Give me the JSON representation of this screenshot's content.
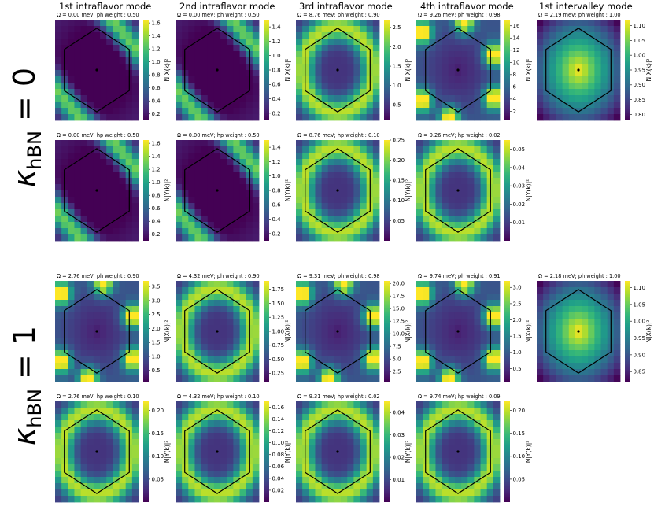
{
  "colorscale": [
    "#440154",
    "#482878",
    "#3e4989",
    "#31688e",
    "#26828e",
    "#1f9e89",
    "#35b779",
    "#6ece58",
    "#b5de2b",
    "#fde725"
  ],
  "chart_data": {
    "type": "heatmap",
    "column_titles": [
      "1st intraflavor mode",
      "2nd intraflavor mode",
      "3rd intraflavor mode",
      "4th intraflavor mode",
      "1st intervalley mode"
    ],
    "row_groups": [
      {
        "label_main": "κ",
        "label_sub": "hBN",
        "label_eq": " = 0"
      },
      {
        "label_main": "κ",
        "label_sub": "hBN",
        "label_eq": " = 1"
      }
    ],
    "panels": [
      {
        "title": "Ω = 0.00 meV;  ph weight : 0.50",
        "cbar_label": "N|X(k)|²",
        "ticks": [
          "0.2",
          "0.4",
          "0.6",
          "0.8",
          "1.0",
          "1.2",
          "1.4",
          "1.6"
        ],
        "range": [
          0.1,
          1.65
        ],
        "pattern": "diag",
        "group": 0,
        "col": 0,
        "sub": 0
      },
      {
        "title": "Ω = 0.00 meV;  ph weight : 0.50",
        "cbar_label": "N|X(k)|²",
        "ticks": [
          "0.2",
          "0.4",
          "0.6",
          "0.8",
          "1.0",
          "1.2",
          "1.4"
        ],
        "range": [
          0.1,
          1.5
        ],
        "pattern": "diag",
        "group": 0,
        "col": 1,
        "sub": 0
      },
      {
        "title": "Ω = 8.76 meV;  ph weight : 0.90",
        "cbar_label": "N|X(k)|²",
        "ticks": [
          "0.5",
          "1.0",
          "1.5",
          "2.0",
          "2.5"
        ],
        "range": [
          0.1,
          2.7
        ],
        "pattern": "ring",
        "group": 0,
        "col": 2,
        "sub": 0
      },
      {
        "title": "Ω = 9.26 meV;  ph weight : 0.98",
        "cbar_label": "N|X(k)|²",
        "ticks": [
          "2",
          "4",
          "6",
          "8",
          "10",
          "12",
          "14",
          "16"
        ],
        "range": [
          0.5,
          17
        ],
        "pattern": "corner",
        "group": 0,
        "col": 3,
        "sub": 0
      },
      {
        "title": "Ω = 2.19 meV;  ph weight : 1.00",
        "cbar_label": "N|X(k)|²",
        "ticks": [
          "0.80",
          "0.85",
          "0.90",
          "0.95",
          "1.00",
          "1.05",
          "1.10"
        ],
        "range": [
          0.78,
          1.12
        ],
        "pattern": "center",
        "group": 0,
        "col": 4,
        "sub": 0
      },
      {
        "title": "Ω = 0.00 meV;  hp weight : 0.50",
        "cbar_label": "N|Y(k)|²",
        "ticks": [
          "0.2",
          "0.4",
          "0.6",
          "0.8",
          "1.0",
          "1.2",
          "1.4",
          "1.6"
        ],
        "range": [
          0.1,
          1.65
        ],
        "pattern": "diag",
        "group": 0,
        "col": 0,
        "sub": 1
      },
      {
        "title": "Ω = 0.00 meV;  hp weight : 0.50",
        "cbar_label": "N|Y(k)|²",
        "ticks": [
          "0.2",
          "0.4",
          "0.6",
          "0.8",
          "1.0",
          "1.2",
          "1.4"
        ],
        "range": [
          0.1,
          1.5
        ],
        "pattern": "diag",
        "group": 0,
        "col": 1,
        "sub": 1
      },
      {
        "title": "Ω = 8.76 meV;  hp weight : 0.10",
        "cbar_label": "N|Y(k)|²",
        "ticks": [
          "0.05",
          "0.10",
          "0.15",
          "0.20",
          "0.25"
        ],
        "range": [
          0.0,
          0.25
        ],
        "pattern": "ring",
        "group": 0,
        "col": 2,
        "sub": 1
      },
      {
        "title": "Ω = 9.26 meV;  hp weight : 0.02",
        "cbar_label": "N|Y(k)|²",
        "ticks": [
          "0.01",
          "0.02",
          "0.03",
          "0.04",
          "0.05"
        ],
        "range": [
          0.0,
          0.055
        ],
        "pattern": "ring",
        "group": 0,
        "col": 3,
        "sub": 1
      },
      {
        "title": "Ω = 2.76 meV;  ph weight : 0.90",
        "cbar_label": "N|X(k)|²",
        "ticks": [
          "0.5",
          "1.0",
          "1.5",
          "2.0",
          "2.5",
          "3.0",
          "3.5"
        ],
        "range": [
          0.1,
          3.7
        ],
        "pattern": "corner",
        "group": 1,
        "col": 0,
        "sub": 0
      },
      {
        "title": "Ω = 4.32 meV;  ph weight : 0.90",
        "cbar_label": "N|X(k)|²",
        "ticks": [
          "0.25",
          "0.50",
          "0.75",
          "1.00",
          "1.25",
          "1.50",
          "1.75"
        ],
        "range": [
          0.1,
          1.9
        ],
        "pattern": "ring",
        "group": 1,
        "col": 1,
        "sub": 0
      },
      {
        "title": "Ω = 9.31 meV;  ph weight : 0.98",
        "cbar_label": "N|X(k)|²",
        "ticks": [
          "2.5",
          "5.0",
          "7.5",
          "10.0",
          "12.5",
          "15.0",
          "17.5",
          "20.0"
        ],
        "range": [
          0.5,
          20.5
        ],
        "pattern": "corner",
        "group": 1,
        "col": 2,
        "sub": 0
      },
      {
        "title": "Ω = 9.74 meV;  ph weight : 0.91",
        "cbar_label": "N|X(k)|²",
        "ticks": [
          "0.5",
          "1.0",
          "1.5",
          "2.0",
          "2.5",
          "3.0"
        ],
        "range": [
          0.1,
          3.2
        ],
        "pattern": "corner",
        "group": 1,
        "col": 3,
        "sub": 0
      },
      {
        "title": "Ω = 2.18 meV;  ph weight : 1.00",
        "cbar_label": "N|X(k)|²",
        "ticks": [
          "0.85",
          "0.90",
          "0.95",
          "1.00",
          "1.05",
          "1.10"
        ],
        "range": [
          0.82,
          1.12
        ],
        "pattern": "center",
        "group": 1,
        "col": 4,
        "sub": 0
      },
      {
        "title": "Ω = 2.76 meV;  hp weight : 0.10",
        "cbar_label": "N|Y(k)|²",
        "ticks": [
          "0.05",
          "0.10",
          "0.15",
          "0.20"
        ],
        "range": [
          0.0,
          0.22
        ],
        "pattern": "ring",
        "group": 1,
        "col": 0,
        "sub": 1
      },
      {
        "title": "Ω = 4.32 meV;  hp weight : 0.10",
        "cbar_label": "N|Y(k)|²",
        "ticks": [
          "0.02",
          "0.04",
          "0.06",
          "0.08",
          "0.10",
          "0.12",
          "0.14",
          "0.16"
        ],
        "range": [
          0.0,
          0.17
        ],
        "pattern": "ring",
        "group": 1,
        "col": 1,
        "sub": 1
      },
      {
        "title": "Ω = 9.31 meV;  hp weight : 0.02",
        "cbar_label": "N|Y(k)|²",
        "ticks": [
          "0.01",
          "0.02",
          "0.03",
          "0.04"
        ],
        "range": [
          0.0,
          0.045
        ],
        "pattern": "ring",
        "group": 1,
        "col": 2,
        "sub": 1
      },
      {
        "title": "Ω = 9.74 meV;  hp weight : 0.09",
        "cbar_label": "N|Y(k)|²",
        "ticks": [
          "0.05",
          "0.10",
          "0.15",
          "0.20"
        ],
        "range": [
          0.0,
          0.22
        ],
        "pattern": "ring",
        "group": 1,
        "col": 3,
        "sub": 1
      }
    ]
  }
}
